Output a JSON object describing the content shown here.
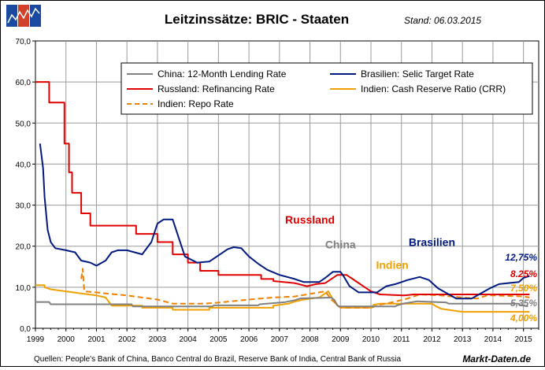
{
  "logo": {
    "name": "markt-daten-logo"
  },
  "chart_data": {
    "type": "line",
    "title": "Leitzinssätze: BRIC - Staaten",
    "subtitle": "Stand: 06.03.2015",
    "source": "Quellen: People's Bank of China, Banco Central do Brazil, Reserve Bank of India, Central Bank of Russia",
    "brand": "Markt-Daten.de",
    "xlim": [
      1999,
      2015.5
    ],
    "ylim": [
      0,
      70
    ],
    "y_ticks": [
      "0,0",
      "10,0",
      "20,0",
      "30,0",
      "40,0",
      "50,0",
      "60,0",
      "70,0"
    ],
    "x_ticks": [
      "1999",
      "2000",
      "2001",
      "2002",
      "2003",
      "2004",
      "2005",
      "2006",
      "2007",
      "2008",
      "2009",
      "2010",
      "2011",
      "2012",
      "2013",
      "2014",
      "2015"
    ],
    "grid": true,
    "legend_position": "top",
    "annotations": [
      {
        "text": "Russland",
        "color": "#e00000",
        "x": 2008.0,
        "y": 25.5
      },
      {
        "text": "China",
        "color": "#808080",
        "x": 2009.0,
        "y": 19.5
      },
      {
        "text": "Brasilien",
        "color": "#001a80",
        "x": 2012.0,
        "y": 20.0
      },
      {
        "text": "Indien",
        "color": "#f0a000",
        "x": 2010.7,
        "y": 14.5
      }
    ],
    "end_labels": [
      {
        "text": "12,75%",
        "color": "#001a80",
        "y": 12.75
      },
      {
        "text": "8.25%",
        "color": "#e00000",
        "y": 8.25
      },
      {
        "text": "7,50%",
        "color": "#f0a000",
        "y": 7.5
      },
      {
        "text": "5,35%",
        "color": "#808080",
        "y": 5.35
      },
      {
        "text": "4,00%",
        "color": "#f0a000",
        "y": 4.0
      }
    ],
    "series": [
      {
        "name": "China: 12-Month Lending Rate",
        "color": "#808080",
        "dash": false,
        "width": 2,
        "points": [
          [
            1999.0,
            6.4
          ],
          [
            1999.45,
            6.4
          ],
          [
            1999.5,
            5.85
          ],
          [
            2002.15,
            5.85
          ],
          [
            2002.2,
            5.31
          ],
          [
            2004.8,
            5.31
          ],
          [
            2004.85,
            5.58
          ],
          [
            2006.3,
            5.58
          ],
          [
            2006.35,
            5.85
          ],
          [
            2007.2,
            6.39
          ],
          [
            2007.5,
            6.84
          ],
          [
            2007.7,
            7.29
          ],
          [
            2008.7,
            7.47
          ],
          [
            2008.8,
            6.93
          ],
          [
            2008.9,
            5.58
          ],
          [
            2008.95,
            5.31
          ],
          [
            2010.8,
            5.31
          ],
          [
            2010.85,
            5.56
          ],
          [
            2011.1,
            6.06
          ],
          [
            2011.5,
            6.56
          ],
          [
            2012.45,
            6.31
          ],
          [
            2012.55,
            6.0
          ],
          [
            2014.85,
            6.0
          ],
          [
            2014.9,
            5.6
          ],
          [
            2015.15,
            5.35
          ]
        ]
      },
      {
        "name": "Brasilien: Selic Target Rate",
        "color": "#001a80",
        "dash": false,
        "width": 2,
        "points": [
          [
            1999.15,
            45
          ],
          [
            1999.25,
            39
          ],
          [
            1999.3,
            32
          ],
          [
            1999.4,
            24
          ],
          [
            1999.5,
            21
          ],
          [
            1999.65,
            19.5
          ],
          [
            2000.0,
            19
          ],
          [
            2000.3,
            18.5
          ],
          [
            2000.5,
            16.5
          ],
          [
            2000.8,
            16
          ],
          [
            2001.0,
            15.25
          ],
          [
            2001.3,
            16.5
          ],
          [
            2001.5,
            18.5
          ],
          [
            2001.7,
            19
          ],
          [
            2002.0,
            19
          ],
          [
            2002.5,
            18
          ],
          [
            2002.8,
            21
          ],
          [
            2003.0,
            25.5
          ],
          [
            2003.2,
            26.5
          ],
          [
            2003.5,
            26.5
          ],
          [
            2003.7,
            22
          ],
          [
            2003.9,
            17.5
          ],
          [
            2004.3,
            16
          ],
          [
            2004.7,
            16.25
          ],
          [
            2005.0,
            17.75
          ],
          [
            2005.3,
            19.25
          ],
          [
            2005.5,
            19.75
          ],
          [
            2005.75,
            19.5
          ],
          [
            2006.0,
            17.5
          ],
          [
            2006.3,
            15.75
          ],
          [
            2006.6,
            14.25
          ],
          [
            2007.0,
            13
          ],
          [
            2007.5,
            12
          ],
          [
            2007.8,
            11.25
          ],
          [
            2008.3,
            11.25
          ],
          [
            2008.5,
            12.25
          ],
          [
            2008.75,
            13.75
          ],
          [
            2009.0,
            13.75
          ],
          [
            2009.1,
            12.75
          ],
          [
            2009.3,
            10.25
          ],
          [
            2009.6,
            8.75
          ],
          [
            2010.2,
            8.75
          ],
          [
            2010.5,
            10.25
          ],
          [
            2010.8,
            10.75
          ],
          [
            2011.2,
            11.75
          ],
          [
            2011.6,
            12.5
          ],
          [
            2011.9,
            11.75
          ],
          [
            2012.2,
            9.75
          ],
          [
            2012.5,
            8.5
          ],
          [
            2012.8,
            7.25
          ],
          [
            2013.3,
            7.25
          ],
          [
            2013.6,
            8.5
          ],
          [
            2013.9,
            9.75
          ],
          [
            2014.2,
            10.75
          ],
          [
            2014.5,
            11
          ],
          [
            2014.85,
            11.25
          ],
          [
            2015.0,
            12.25
          ],
          [
            2015.2,
            12.75
          ]
        ]
      },
      {
        "name": "Russland: Refinancing Rate",
        "color": "#e00000",
        "dash": false,
        "width": 2,
        "points": [
          [
            1999.0,
            60
          ],
          [
            1999.45,
            60
          ],
          [
            1999.45,
            55
          ],
          [
            1999.95,
            55
          ],
          [
            1999.95,
            45
          ],
          [
            2000.1,
            45
          ],
          [
            2000.1,
            38
          ],
          [
            2000.2,
            38
          ],
          [
            2000.2,
            33
          ],
          [
            2000.5,
            33
          ],
          [
            2000.5,
            28
          ],
          [
            2000.8,
            28
          ],
          [
            2000.8,
            25
          ],
          [
            2002.3,
            25
          ],
          [
            2002.3,
            23
          ],
          [
            2003.0,
            23
          ],
          [
            2003.0,
            21
          ],
          [
            2003.5,
            21
          ],
          [
            2003.5,
            18
          ],
          [
            2004.0,
            18
          ],
          [
            2004.0,
            16
          ],
          [
            2004.4,
            16
          ],
          [
            2004.4,
            14
          ],
          [
            2005.0,
            14
          ],
          [
            2005.0,
            13
          ],
          [
            2006.4,
            13
          ],
          [
            2006.4,
            12
          ],
          [
            2006.8,
            12
          ],
          [
            2006.8,
            11.5
          ],
          [
            2007.5,
            11
          ],
          [
            2007.9,
            10.25
          ],
          [
            2008.2,
            10.75
          ],
          [
            2008.5,
            11
          ],
          [
            2008.7,
            12
          ],
          [
            2008.9,
            13
          ],
          [
            2009.2,
            13
          ],
          [
            2009.5,
            11.5
          ],
          [
            2009.8,
            10
          ],
          [
            2010.0,
            9
          ],
          [
            2010.3,
            8.25
          ],
          [
            2011.1,
            8
          ],
          [
            2011.4,
            8.25
          ],
          [
            2014.0,
            8.25
          ],
          [
            2015.2,
            8.25
          ]
        ]
      },
      {
        "name": "Indien: Cash Reserve Ratio (CRR)",
        "color": "#f0a000",
        "dash": false,
        "width": 2,
        "points": [
          [
            1999.0,
            10.5
          ],
          [
            1999.3,
            10.5
          ],
          [
            1999.3,
            10
          ],
          [
            1999.5,
            9.5
          ],
          [
            2000.0,
            9
          ],
          [
            2000.5,
            8.5
          ],
          [
            2001.0,
            8
          ],
          [
            2001.3,
            7.5
          ],
          [
            2001.5,
            5.5
          ],
          [
            2002.5,
            5.5
          ],
          [
            2002.5,
            5
          ],
          [
            2003.5,
            5
          ],
          [
            2003.5,
            4.5
          ],
          [
            2004.7,
            4.5
          ],
          [
            2004.7,
            5
          ],
          [
            2006.8,
            5
          ],
          [
            2006.8,
            5.5
          ],
          [
            2007.3,
            6
          ],
          [
            2007.5,
            6.5
          ],
          [
            2007.8,
            7
          ],
          [
            2008.3,
            7.5
          ],
          [
            2008.6,
            9
          ],
          [
            2008.8,
            6.5
          ],
          [
            2008.9,
            5.5
          ],
          [
            2009.1,
            5
          ],
          [
            2010.0,
            5
          ],
          [
            2010.1,
            5.75
          ],
          [
            2010.3,
            6
          ],
          [
            2012.0,
            6
          ],
          [
            2012.1,
            5.5
          ],
          [
            2012.3,
            4.75
          ],
          [
            2013.0,
            4
          ],
          [
            2015.2,
            4
          ]
        ]
      },
      {
        "name": "Indien: Repo Rate",
        "color": "#f08000",
        "dash": true,
        "width": 2,
        "points": [
          [
            2000.5,
            12
          ],
          [
            2000.55,
            14.5
          ],
          [
            2000.6,
            9
          ],
          [
            2001.0,
            8.75
          ],
          [
            2001.3,
            8.5
          ],
          [
            2002.0,
            8
          ],
          [
            2002.5,
            7.5
          ],
          [
            2003.0,
            7
          ],
          [
            2003.5,
            6
          ],
          [
            2004.5,
            6
          ],
          [
            2005.0,
            6.25
          ],
          [
            2006.0,
            7
          ],
          [
            2006.8,
            7.5
          ],
          [
            2007.5,
            7.75
          ],
          [
            2008.5,
            9
          ],
          [
            2008.7,
            7
          ],
          [
            2009.0,
            5
          ],
          [
            2010.0,
            5
          ],
          [
            2010.3,
            5.75
          ],
          [
            2010.8,
            6.5
          ],
          [
            2011.2,
            7.25
          ],
          [
            2011.6,
            8.25
          ],
          [
            2012.3,
            8
          ],
          [
            2013.0,
            7.5
          ],
          [
            2013.5,
            7.25
          ],
          [
            2013.8,
            8
          ],
          [
            2014.0,
            8
          ],
          [
            2015.0,
            7.75
          ],
          [
            2015.2,
            7.5
          ]
        ]
      }
    ]
  }
}
